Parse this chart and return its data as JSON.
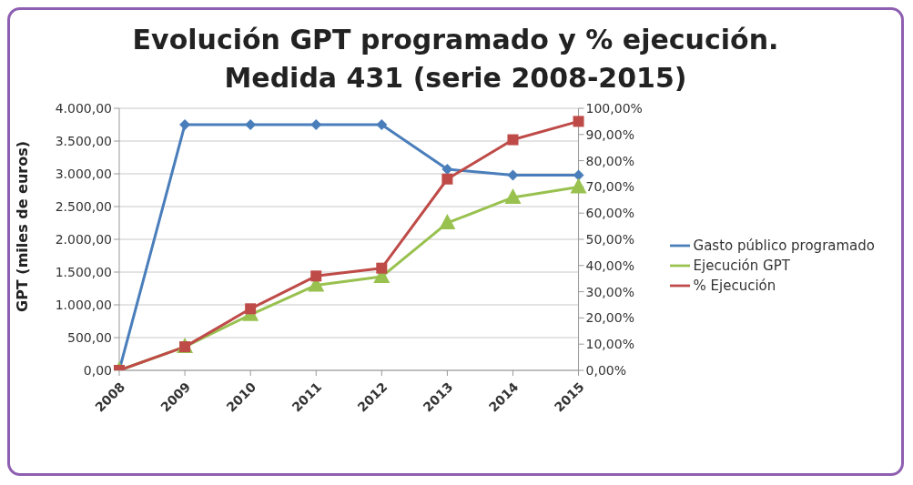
{
  "chart_data": {
    "type": "line",
    "title": "Evolución GPT programado y % ejecución.\nMedida 431 (serie 2008-2015)",
    "ylabel": "GPT (miles de euros)",
    "categories": [
      "2008",
      "2009",
      "2010",
      "2011",
      "2012",
      "2013",
      "2014",
      "2015"
    ],
    "series": [
      {
        "name": "Gasto público programado",
        "color": "#4a7ebb",
        "marker": "diamond",
        "values": [
          0,
          3750,
          3750,
          3750,
          3750,
          3070,
          2980,
          2980
        ]
      },
      {
        "name": "Ejecución GPT",
        "color": "#98c14f",
        "marker": "triangle",
        "values": [
          0,
          360,
          850,
          1300,
          1430,
          2250,
          2640,
          2800
        ]
      },
      {
        "name": "% Ejecución",
        "color": "#be4b48",
        "marker": "square",
        "axis": "y2",
        "values": [
          0,
          9,
          23.5,
          36,
          39,
          73,
          88,
          95
        ]
      }
    ],
    "ylim": [
      0,
      4000
    ],
    "yticks": [
      {
        "value": 0,
        "label": "0,00"
      },
      {
        "value": 500,
        "label": "500,00"
      },
      {
        "value": 1000,
        "label": "1.000,00"
      },
      {
        "value": 1500,
        "label": "1.500,00"
      },
      {
        "value": 2000,
        "label": "2.000,00"
      },
      {
        "value": 2500,
        "label": "2.500,00"
      },
      {
        "value": 3000,
        "label": "3.000,00"
      },
      {
        "value": 3500,
        "label": "3.500,00"
      },
      {
        "value": 4000,
        "label": "4.000,00"
      }
    ],
    "y2lim": [
      0,
      100
    ],
    "y2ticks": [
      {
        "value": 0,
        "label": "0,00%"
      },
      {
        "value": 10,
        "label": "10,00%"
      },
      {
        "value": 20,
        "label": "20,00%"
      },
      {
        "value": 30,
        "label": "30,00%"
      },
      {
        "value": 40,
        "label": "40,00%"
      },
      {
        "value": 50,
        "label": "50,00%"
      },
      {
        "value": 60,
        "label": "60,00%"
      },
      {
        "value": 70,
        "label": "70,00%"
      },
      {
        "value": 80,
        "label": "80,00%"
      },
      {
        "value": 90,
        "label": "90,00%"
      },
      {
        "value": 100,
        "label": "100,00%"
      }
    ],
    "grid": "y",
    "legend": "right"
  }
}
